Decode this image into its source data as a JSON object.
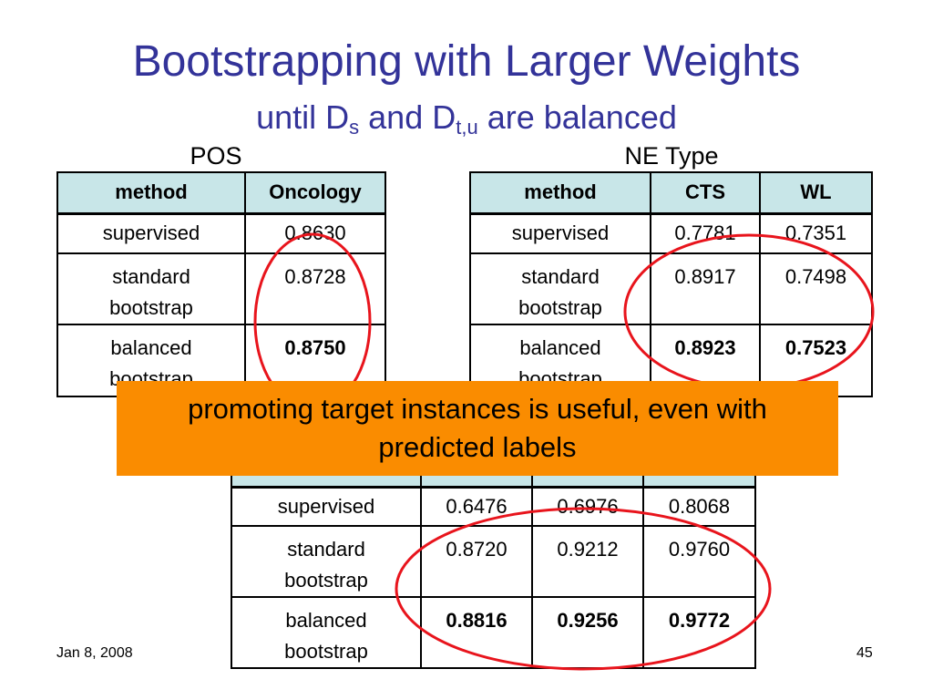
{
  "header": {
    "title": "Bootstrapping with Larger Weights",
    "subtitle": [
      "until D",
      "s",
      " and D",
      "t,u",
      " are balanced"
    ]
  },
  "tables": [
    {
      "label": "POS",
      "header": [
        "method",
        "Oncology"
      ],
      "rows": [
        [
          "supervised",
          "0.8630"
        ],
        [
          "standard bootstrap",
          "0.8728"
        ],
        [
          "balanced bootstrap",
          "0.8750"
        ]
      ]
    },
    {
      "label": "NE Type",
      "header": [
        "method",
        "CTS",
        "WL"
      ],
      "rows": [
        [
          "supervised",
          "0.7781",
          "0.7351"
        ],
        [
          "standard bootstrap",
          "0.8917",
          "0.7498"
        ],
        [
          "balanced bootstrap",
          "0.8923",
          "0.7523"
        ]
      ]
    },
    {
      "rows": [
        [
          "supervised",
          "0.6476",
          "0.6976",
          "0.8068"
        ],
        [
          "standard bootstrap",
          "0.8720",
          "0.9212",
          "0.9760"
        ],
        [
          "balanced bootstrap",
          "0.8816",
          "0.9256",
          "0.9772"
        ]
      ]
    }
  ],
  "callout": "promoting target instances is useful, even with predicted labels",
  "footer": {
    "date": "Jan 8, 2008",
    "page": "45"
  }
}
